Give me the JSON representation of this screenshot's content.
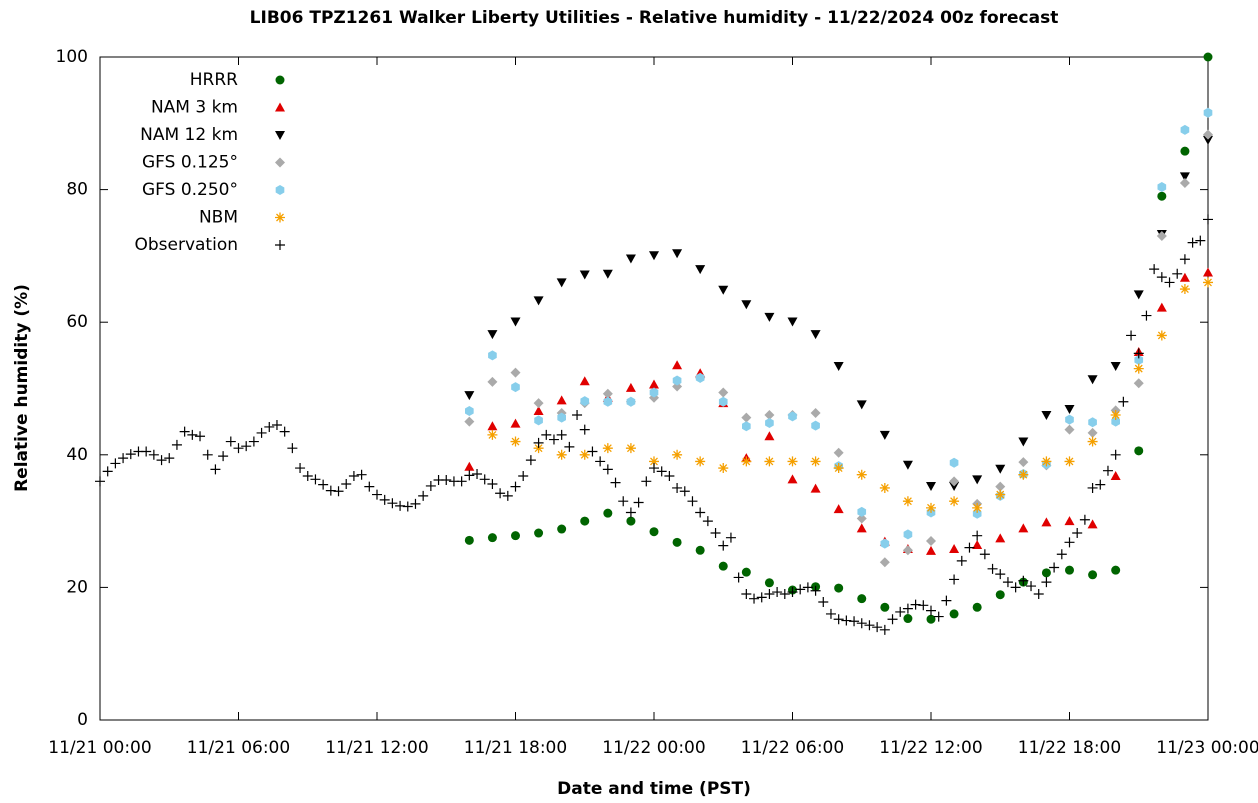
{
  "chart_data": {
    "type": "scatter",
    "title": "LIB06 TPZ1261 Walker Liberty Utilities - Relative humidity - 11/22/2024 00z forecast",
    "x_label": "Date and time (PST)",
    "y_label": "Relative humidity (%)",
    "xlim": [
      "11/21 00:00",
      "11/23 00:00"
    ],
    "xticks": [
      "11/21 00:00",
      "11/21 06:00",
      "11/21 12:00",
      "11/21 18:00",
      "11/22 00:00",
      "11/22 06:00",
      "11/22 12:00",
      "11/22 18:00",
      "11/23 00:00"
    ],
    "ylim": [
      0,
      100
    ],
    "yticks": [
      0,
      20,
      40,
      60,
      80,
      100
    ],
    "legend": "upper left",
    "x": [
      "11/21 16:00",
      "11/21 17:00",
      "11/21 18:00",
      "11/21 19:00",
      "11/21 20:00",
      "11/21 21:00",
      "11/21 22:00",
      "11/21 23:00",
      "11/22 00:00",
      "11/22 01:00",
      "11/22 02:00",
      "11/22 03:00",
      "11/22 04:00",
      "11/22 05:00",
      "11/22 06:00",
      "11/22 07:00",
      "11/22 08:00",
      "11/22 09:00",
      "11/22 10:00",
      "11/22 11:00",
      "11/22 12:00",
      "11/22 13:00",
      "11/22 14:00",
      "11/22 15:00",
      "11/22 16:00",
      "11/22 17:00",
      "11/22 18:00",
      "11/22 19:00",
      "11/22 20:00",
      "11/22 21:00",
      "11/22 22:00",
      "11/22 23:00",
      "11/23 00:00"
    ],
    "series": [
      {
        "name": "HRRR",
        "color": "#006400",
        "marker": "circle",
        "values": [
          27.1,
          27.5,
          27.8,
          28.2,
          28.8,
          30.0,
          31.2,
          30.0,
          28.4,
          26.8,
          25.6,
          23.2,
          22.3,
          20.7,
          19.6,
          20.1,
          19.9,
          18.3,
          17.0,
          15.3,
          15.2,
          16.0,
          17.0,
          18.9,
          20.8,
          22.2,
          22.6,
          21.9,
          22.6,
          40.6,
          79.0,
          85.8,
          100
        ]
      },
      {
        "name": "NAM 3 km",
        "color": "#e00000",
        "marker": "triangle-up",
        "values": [
          38.2,
          44.3,
          44.7,
          46.6,
          48.2,
          51.1,
          48.6,
          50.1,
          50.6,
          53.5,
          52.3,
          47.8,
          39.5,
          42.8,
          36.3,
          34.9,
          31.8,
          28.9,
          26.9,
          25.8,
          25.5,
          25.8,
          26.4,
          27.4,
          28.9,
          29.8,
          30.0,
          29.5,
          36.8,
          55.5,
          62.2,
          66.7,
          67.5
        ]
      },
      {
        "name": "NAM 12 km",
        "color": "#000000",
        "marker": "triangle-down",
        "values": [
          49.0,
          58.2,
          60.1,
          63.3,
          66.0,
          67.2,
          67.3,
          69.6,
          70.1,
          70.4,
          68.0,
          64.9,
          62.7,
          60.8,
          60.1,
          58.2,
          53.4,
          47.6,
          43.0,
          38.5,
          35.3,
          35.3,
          36.3,
          37.9,
          42.0,
          46.0,
          46.9,
          51.4,
          53.4,
          64.2,
          73.3,
          82.0,
          87.5
        ]
      },
      {
        "name": "GFS 0.125°",
        "color": "#aaaaaa",
        "marker": "diamond",
        "values": [
          45.0,
          51.0,
          52.4,
          47.8,
          46.3,
          47.8,
          49.2,
          48.0,
          48.6,
          50.3,
          51.6,
          49.4,
          45.6,
          46.0,
          46.0,
          46.3,
          40.3,
          30.4,
          23.8,
          25.6,
          27.0,
          36.0,
          32.6,
          35.2,
          38.9,
          38.4,
          43.8,
          43.3,
          46.7,
          50.8,
          73.0,
          81.0,
          88.3
        ]
      },
      {
        "name": "GFS 0.250°",
        "color": "#87ceeb",
        "marker": "hexagon",
        "values": [
          46.6,
          55.0,
          50.2,
          45.2,
          45.6,
          48.1,
          48.0,
          48.0,
          49.4,
          51.2,
          51.6,
          48.0,
          44.3,
          44.8,
          45.8,
          44.4,
          38.3,
          31.4,
          26.6,
          28.0,
          31.3,
          38.8,
          31.1,
          33.8,
          37.1,
          38.6,
          45.3,
          44.9,
          45.0,
          54.3,
          80.4,
          89.0,
          91.6
        ]
      },
      {
        "name": "NBM",
        "color": "#f5a000",
        "marker": "asterisk",
        "values": [
          null,
          43,
          42,
          41,
          40,
          40,
          41,
          41,
          39,
          40,
          39,
          38,
          39,
          39,
          39,
          39,
          38,
          37,
          35,
          33,
          32,
          33,
          32,
          34,
          37,
          39,
          39,
          42,
          46,
          53,
          58,
          65,
          66
        ]
      },
      {
        "name": "Observation",
        "color": "#000000",
        "marker": "plus",
        "x": [
          "11/21 00:00",
          "11/21 00:20",
          "11/21 00:40",
          "11/21 01:00",
          "11/21 01:20",
          "11/21 01:40",
          "11/21 02:00",
          "11/21 02:20",
          "11/21 02:40",
          "11/21 03:00",
          "11/21 03:20",
          "11/21 03:40",
          "11/21 04:00",
          "11/21 04:20",
          "11/21 04:40",
          "11/21 05:00",
          "11/21 05:20",
          "11/21 05:40",
          "11/21 06:00",
          "11/21 06:20",
          "11/21 06:40",
          "11/21 07:00",
          "11/21 07:20",
          "11/21 07:40",
          "11/21 08:00",
          "11/21 08:20",
          "11/21 08:40",
          "11/21 09:00",
          "11/21 09:20",
          "11/21 09:40",
          "11/21 10:00",
          "11/21 10:20",
          "11/21 10:40",
          "11/21 11:00",
          "11/21 11:20",
          "11/21 11:40",
          "11/21 12:00",
          "11/21 12:20",
          "11/21 12:40",
          "11/21 13:00",
          "11/21 13:20",
          "11/21 13:40",
          "11/21 14:00",
          "11/21 14:20",
          "11/21 14:40",
          "11/21 15:00",
          "11/21 15:20",
          "11/21 15:40",
          "11/21 16:00",
          "11/21 16:20",
          "11/21 16:40",
          "11/21 17:00",
          "11/21 17:20",
          "11/21 17:40",
          "11/21 18:00",
          "11/21 18:20",
          "11/21 18:40",
          "11/21 19:00",
          "11/21 19:20",
          "11/21 19:40",
          "11/21 20:00",
          "11/21 20:20",
          "11/21 20:40",
          "11/21 21:00",
          "11/21 21:20",
          "11/21 21:40",
          "11/21 22:00",
          "11/21 22:20",
          "11/21 22:40",
          "11/21 23:00",
          "11/21 23:20",
          "11/21 23:40",
          "11/22 00:00",
          "11/22 00:20",
          "11/22 00:40",
          "11/22 01:00",
          "11/22 01:20",
          "11/22 01:40",
          "11/22 02:00",
          "11/22 02:20",
          "11/22 02:40",
          "11/22 03:00",
          "11/22 03:20",
          "11/22 03:40",
          "11/22 04:00",
          "11/22 04:20",
          "11/22 04:40",
          "11/22 05:00",
          "11/22 05:20",
          "11/22 05:40",
          "11/22 06:00",
          "11/22 06:20",
          "11/22 06:40",
          "11/22 07:00",
          "11/22 07:20",
          "11/22 07:40",
          "11/22 08:00",
          "11/22 08:20",
          "11/22 08:40",
          "11/22 09:00",
          "11/22 09:20",
          "11/22 09:40",
          "11/22 10:00",
          "11/22 10:20",
          "11/22 10:40",
          "11/22 11:00",
          "11/22 11:20",
          "11/22 11:40",
          "11/22 12:00",
          "11/22 12:20",
          "11/22 12:40",
          "11/22 13:00",
          "11/22 13:20",
          "11/22 13:40",
          "11/22 14:00",
          "11/22 14:20",
          "11/22 14:40",
          "11/22 15:00",
          "11/22 15:20",
          "11/22 15:40",
          "11/22 16:00",
          "11/22 16:20",
          "11/22 16:40",
          "11/22 17:00",
          "11/22 17:20",
          "11/22 17:40",
          "11/22 18:00",
          "11/22 18:20",
          "11/22 18:40",
          "11/22 19:00",
          "11/22 19:20",
          "11/22 19:40",
          "11/22 20:00",
          "11/22 20:20",
          "11/22 20:40",
          "11/22 21:00",
          "11/22 21:20",
          "11/22 21:40",
          "11/22 22:00",
          "11/22 22:20",
          "11/22 22:40",
          "11/22 23:00",
          "11/22 23:20",
          "11/22 23:40",
          "11/23 00:00"
        ],
        "values": [
          36.0,
          37.5,
          38.7,
          39.5,
          40.1,
          40.5,
          40.5,
          40.0,
          39.2,
          39.5,
          41.5,
          43.5,
          43.0,
          42.8,
          40.0,
          37.8,
          39.8,
          42.0,
          41.0,
          41.3,
          42.0,
          43.3,
          44.2,
          44.5,
          43.5,
          41.0,
          38.0,
          36.8,
          36.3,
          35.5,
          34.6,
          34.5,
          35.6,
          36.8,
          37.0,
          35.2,
          34.0,
          33.2,
          32.7,
          32.3,
          32.2,
          32.6,
          33.8,
          35.3,
          36.2,
          36.2,
          36.0,
          36.0,
          36.9,
          37.1,
          36.3,
          35.6,
          34.2,
          33.8,
          35.2,
          36.8,
          39.2,
          41.8,
          43.0,
          42.3,
          43.0,
          41.2,
          46.0,
          43.8,
          40.5,
          39.0,
          37.8,
          35.8,
          33.0,
          31.3,
          32.8,
          36.0,
          38.0,
          37.5,
          36.8,
          35.0,
          34.5,
          33.0,
          31.3,
          30.0,
          28.2,
          26.3,
          27.5,
          21.5,
          19.0,
          18.3,
          18.5,
          19.0,
          19.3,
          19.0,
          19.3,
          19.7,
          20.0,
          19.5,
          17.8,
          16.0,
          15.2,
          15.0,
          14.9,
          14.6,
          14.3,
          14.0,
          13.6,
          15.2,
          16.3,
          16.8,
          17.4,
          17.3,
          16.5,
          15.6,
          18.0,
          21.2,
          24.0,
          26.0,
          27.8,
          25.0,
          22.8,
          22.0,
          20.8,
          20.0,
          21.0,
          20.2,
          19.0,
          20.8,
          23.0,
          25.0,
          26.8,
          28.2,
          30.2,
          35.0,
          35.5,
          37.6,
          40.0,
          48.0,
          58.0,
          55.3,
          61.0,
          68.0,
          66.8,
          66.0,
          67.3,
          69.5,
          72.0,
          72.3,
          75.5
        ]
      }
    ]
  }
}
